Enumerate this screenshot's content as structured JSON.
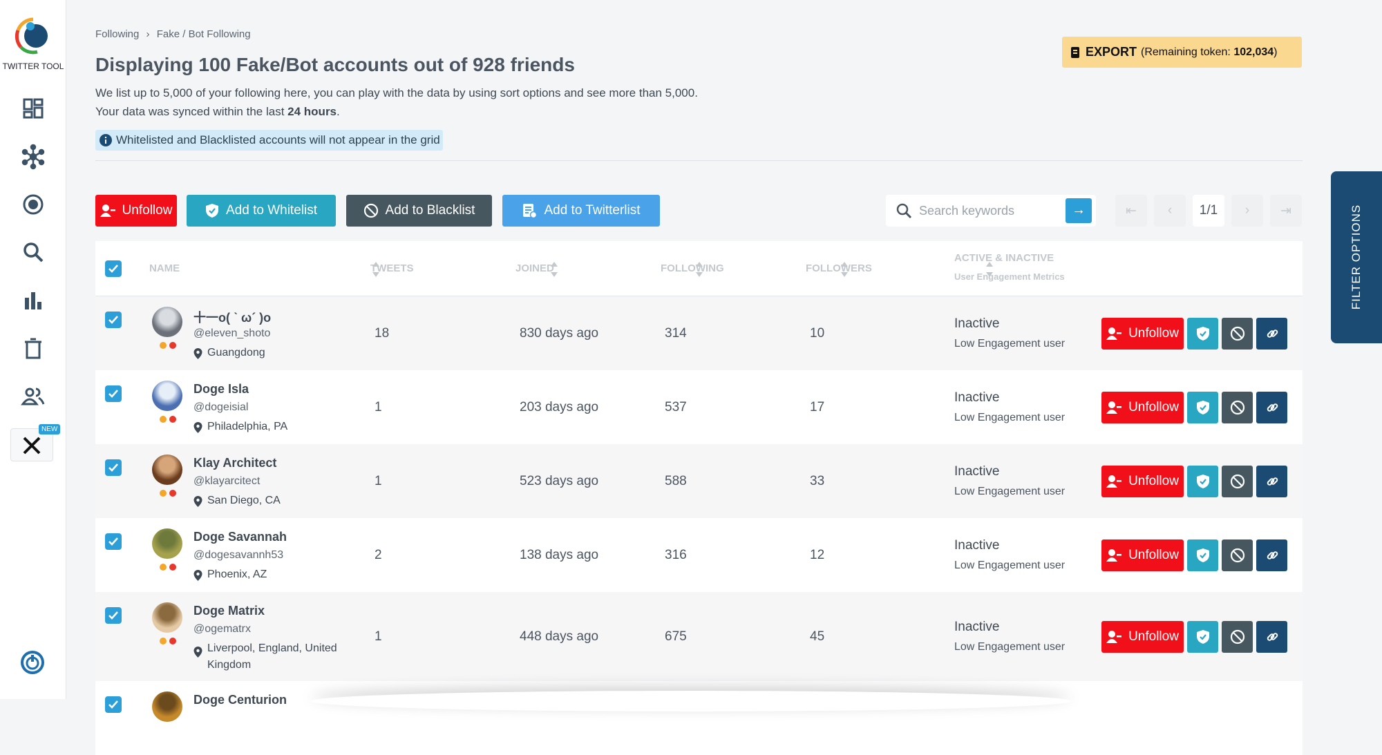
{
  "sidebar": {
    "brand": "TWITTER TOOL",
    "badge": "NEW"
  },
  "breadcrumb": [
    "Following",
    "Fake / Bot Following"
  ],
  "header": {
    "title": "Displaying 100 Fake/Bot accounts out of 928 friends",
    "description": "We list up to 5,000 of your following here, you can play with the data by using sort options and see more than 5,000.",
    "sync_prefix": "Your data was synced within the last",
    "sync_bold": "24 hours",
    "sync_suffix": ".",
    "notice": "Whitelisted and Blacklisted accounts will not appear in the grid"
  },
  "export": {
    "label": "EXPORT",
    "token_prefix": "(Remaining token:",
    "token_value": "102,034",
    "token_suffix": ")"
  },
  "actions": [
    "Unfollow",
    "Add to Whitelist",
    "Add to Blacklist",
    "Add to Twitterlist"
  ],
  "search": {
    "placeholder": "Search keywords"
  },
  "pagination": {
    "page": "1/1"
  },
  "table": {
    "columns": [
      "NAME",
      "TWEETS",
      "JOINED",
      "FOLLOWING",
      "FOLLOWERS",
      "ACTIVE & INACTIVE"
    ],
    "column_sub": "User Engagement Metrics",
    "row_action": "Unfollow",
    "rows": [
      {
        "name": "十一o( ˋ ω´ )o",
        "handle": "@eleven_shoto",
        "location": "Guangdong",
        "tweets": 18,
        "joined": "830 days ago",
        "following": 314,
        "followers": 10,
        "status": "Inactive",
        "engagement": "Low Engagement user"
      },
      {
        "name": "Doge Isla",
        "handle": "@dogeisial",
        "location": "Philadelphia, PA",
        "tweets": 1,
        "joined": "203 days ago",
        "following": 537,
        "followers": 17,
        "status": "Inactive",
        "engagement": "Low Engagement user"
      },
      {
        "name": "Klay Architect",
        "handle": "@klayarcitect",
        "location": "San Diego, CA",
        "tweets": 1,
        "joined": "523 days ago",
        "following": 588,
        "followers": 33,
        "status": "Inactive",
        "engagement": "Low Engagement user"
      },
      {
        "name": "Doge Savannah",
        "handle": "@dogesavannh53",
        "location": "Phoenix, AZ",
        "tweets": 2,
        "joined": "138 days ago",
        "following": 316,
        "followers": 12,
        "status": "Inactive",
        "engagement": "Low Engagement user"
      },
      {
        "name": "Doge Matrix",
        "handle": "@ogematrx",
        "location": "Liverpool, England, United Kingdom",
        "tweets": 1,
        "joined": "448 days ago",
        "following": 675,
        "followers": 45,
        "status": "Inactive",
        "engagement": "Low Engagement user"
      },
      {
        "name": "Doge Centurion"
      }
    ]
  },
  "filter_tab": "FILTER OPTIONS"
}
